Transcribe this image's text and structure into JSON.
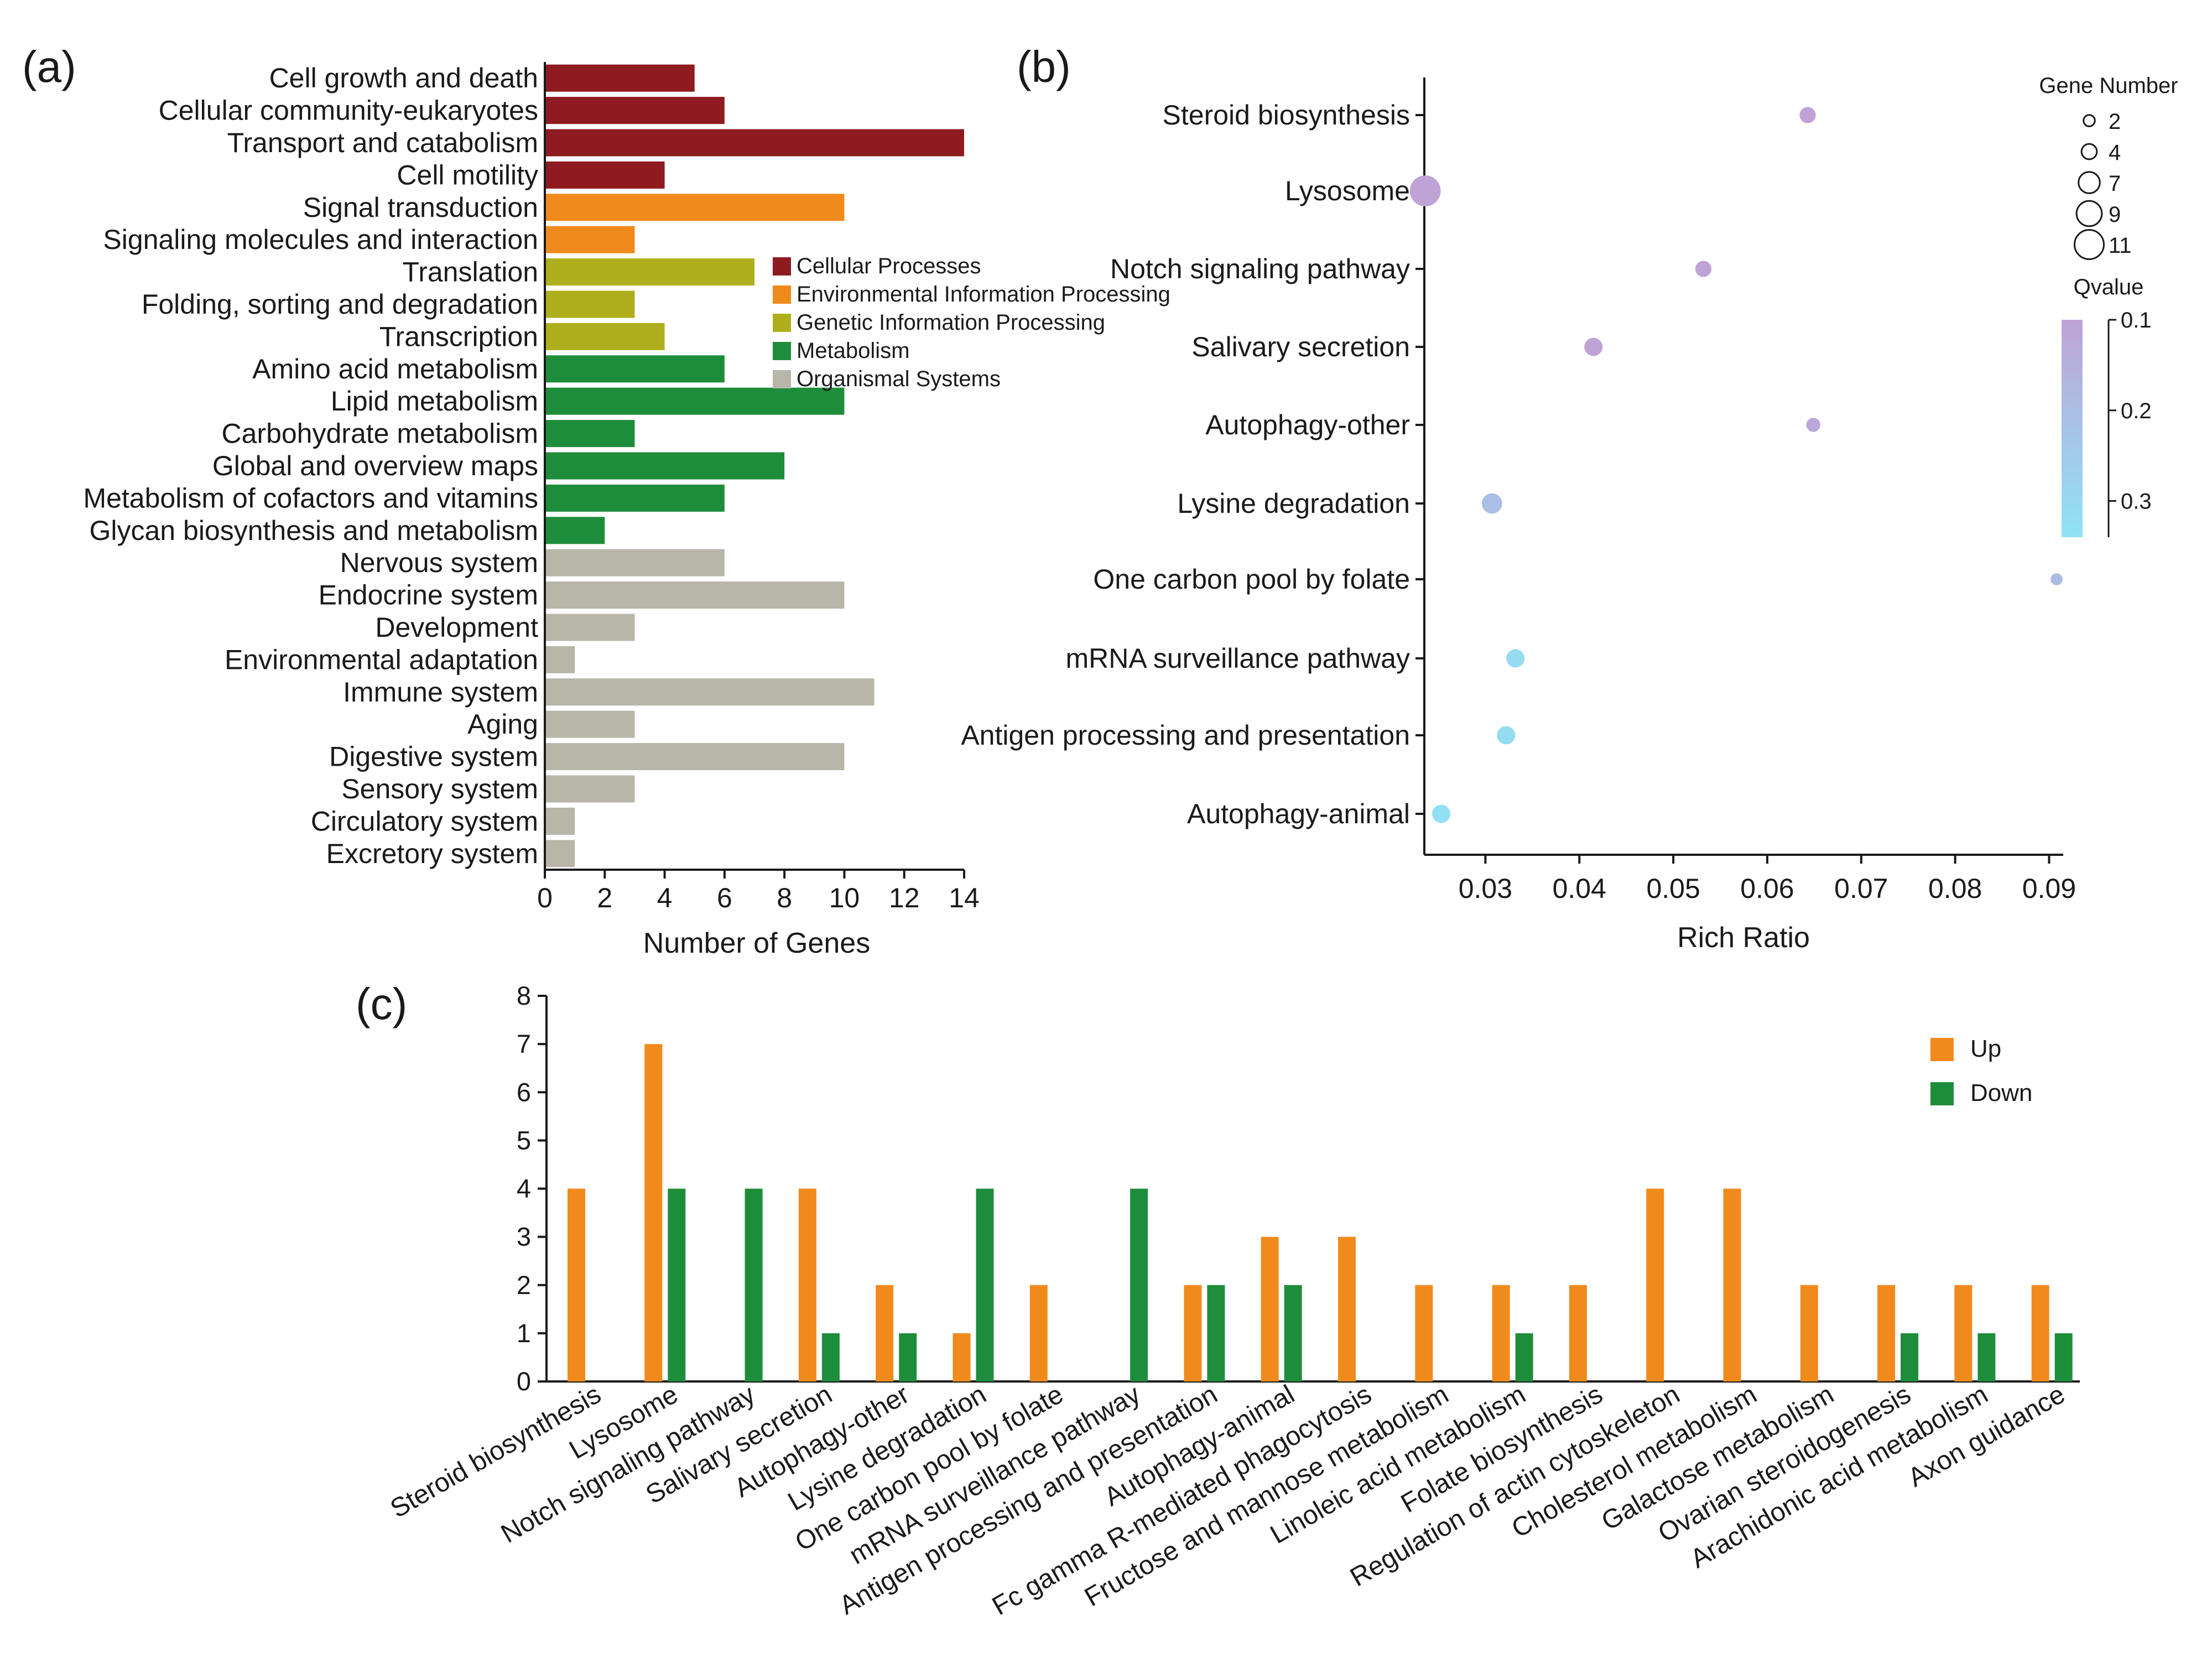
{
  "colors": {
    "Cellular Processes": "#8e1b20",
    "Environmental Information Processing": "#f18a1c",
    "Genetic Information Processing": "#afaf1d",
    "Metabolism": "#1e8d3b",
    "Organismal Systems": "#b7b6a8",
    "up": "#f18a1c",
    "down": "#1e8d3b",
    "q_low": "#bfa3d6",
    "q_high": "#8fe3f5"
  },
  "chart_data": [
    {
      "panel": "(a)",
      "type": "bar",
      "orientation": "horizontal",
      "xlabel": "Number of Genes",
      "xlim": [
        0,
        14
      ],
      "xticks": [
        0,
        2,
        4,
        6,
        8,
        10,
        12,
        14
      ],
      "legend": [
        "Cellular Processes",
        "Environmental Information Processing",
        "Genetic Information Processing",
        "Metabolism",
        "Organismal Systems"
      ],
      "categories": [
        "Cell growth and death",
        "Cellular community-eukaryotes",
        "Transport and catabolism",
        "Cell motility",
        "Signal transduction",
        "Signaling molecules and interaction",
        "Translation",
        "Folding, sorting and degradation",
        "Transcription",
        "Amino acid metabolism",
        "Lipid metabolism",
        "Carbohydrate metabolism",
        "Global and overview maps",
        "Metabolism of cofactors and vitamins",
        "Glycan biosynthesis and metabolism",
        "Nervous system",
        "Endocrine system",
        "Development",
        "Environmental adaptation",
        "Immune system",
        "Aging",
        "Digestive system",
        "Sensory system",
        "Circulatory system",
        "Excretory system"
      ],
      "values": [
        5,
        6,
        14,
        4,
        10,
        3,
        7,
        3,
        4,
        6,
        10,
        3,
        8,
        6,
        2,
        6,
        10,
        3,
        1,
        11,
        3,
        10,
        3,
        1,
        1
      ],
      "groups": [
        "Cellular Processes",
        "Cellular Processes",
        "Cellular Processes",
        "Cellular Processes",
        "Environmental Information Processing",
        "Environmental Information Processing",
        "Genetic Information Processing",
        "Genetic Information Processing",
        "Genetic Information Processing",
        "Metabolism",
        "Metabolism",
        "Metabolism",
        "Metabolism",
        "Metabolism",
        "Metabolism",
        "Organismal Systems",
        "Organismal Systems",
        "Organismal Systems",
        "Organismal Systems",
        "Organismal Systems",
        "Organismal Systems",
        "Organismal Systems",
        "Organismal Systems",
        "Organismal Systems",
        "Organismal Systems"
      ]
    },
    {
      "panel": "(b)",
      "type": "scatter",
      "xlabel": "Rich Ratio",
      "xlim": [
        0.0235,
        0.0915
      ],
      "xticks": [
        0.03,
        0.04,
        0.05,
        0.06,
        0.07,
        0.08,
        0.09
      ],
      "xtick_labels": [
        "0.03",
        "0.04",
        "0.05",
        "0.06",
        "0.07",
        "0.08",
        "0.09"
      ],
      "size_legend_title": "Gene Number",
      "size_legend": [
        2,
        4,
        7,
        9,
        11
      ],
      "color_legend_title": "Qvalue",
      "color_ticks": [
        "0.1",
        "0.2",
        "0.3"
      ],
      "qlim": [
        0.1,
        0.34
      ],
      "categories": [
        "Steroid biosynthesis",
        "Lysosome",
        "Notch signaling pathway",
        "Salivary secretion",
        "Autophagy-other",
        "Lysine degradation",
        "One carbon pool by folate",
        "mRNA surveillance pathway",
        "Antigen processing and presentation",
        "Autophagy-animal"
      ],
      "rich_ratio": [
        0.0643,
        0.0236,
        0.0532,
        0.0415,
        0.0649,
        0.0307,
        0.0908,
        0.0332,
        0.0322,
        0.0253
      ],
      "gene_number": [
        4,
        11,
        4,
        5,
        3,
        6,
        2,
        5,
        5,
        5
      ],
      "qvalue": [
        0.1,
        0.1,
        0.1,
        0.1,
        0.12,
        0.2,
        0.19,
        0.31,
        0.31,
        0.33
      ]
    },
    {
      "panel": "(c)",
      "type": "bar",
      "ylim": [
        0,
        8
      ],
      "yticks": [
        0,
        1,
        2,
        3,
        4,
        5,
        6,
        7,
        8
      ],
      "categories": [
        "Steroid biosynthesis",
        "Lysosome",
        "Notch signaling pathway",
        "Salivary secretion",
        "Autophagy-other",
        "Lysine degradation",
        "One carbon pool by folate",
        "mRNA surveillance pathway",
        "Antigen processing and presentation",
        "Autophagy-animal",
        "Fc gamma R-mediated phagocytosis",
        "Fructose and mannose metabolism",
        "Linoleic acid metabolism",
        "Folate biosynthesis",
        "Regulation of actin cytoskeleton",
        "Cholesterol metabolism",
        "Galactose metabolism",
        "Ovarian steroidogenesis",
        "Arachidonic acid metabolism",
        "Axon guidance"
      ],
      "series": [
        {
          "name": "Up",
          "values": [
            4,
            7,
            0,
            4,
            2,
            1,
            2,
            0,
            2,
            3,
            3,
            2,
            2,
            2,
            4,
            4,
            2,
            2,
            2,
            2
          ]
        },
        {
          "name": "Down",
          "values": [
            0,
            4,
            4,
            1,
            1,
            4,
            0,
            4,
            2,
            2,
            0,
            0,
            1,
            0,
            0,
            0,
            0,
            1,
            1,
            1
          ]
        }
      ]
    }
  ]
}
